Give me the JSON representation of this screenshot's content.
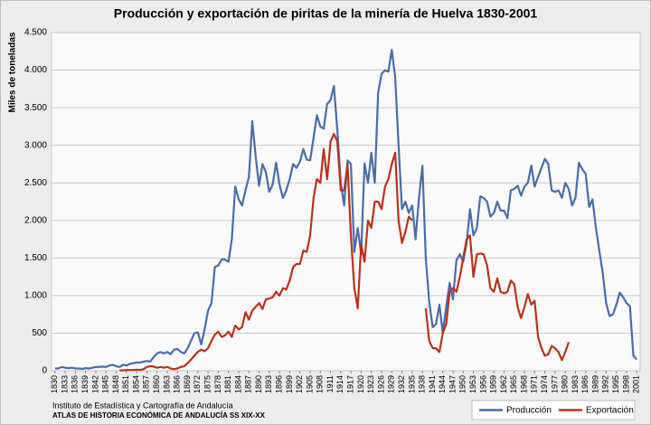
{
  "chart_data": {
    "type": "line",
    "title": "Producción y exportación de piritas de la minería de Huelva 1830-2001",
    "y_label": "Miles de toneladas",
    "source": "Instituto de Estadística y Cartografía de Andalucía",
    "source_note": "ATLAS DE HISTORIA ECONÓMICA DE ANDALUCÍA SS XIX-XX",
    "x": [
      1830,
      1831,
      1832,
      1833,
      1834,
      1835,
      1836,
      1837,
      1838,
      1839,
      1840,
      1841,
      1842,
      1843,
      1844,
      1845,
      1846,
      1847,
      1848,
      1849,
      1850,
      1851,
      1852,
      1853,
      1854,
      1855,
      1856,
      1857,
      1858,
      1859,
      1860,
      1861,
      1862,
      1863,
      1864,
      1865,
      1866,
      1867,
      1868,
      1869,
      1870,
      1871,
      1872,
      1873,
      1874,
      1875,
      1876,
      1877,
      1878,
      1879,
      1880,
      1881,
      1882,
      1883,
      1884,
      1885,
      1886,
      1887,
      1888,
      1889,
      1890,
      1891,
      1892,
      1893,
      1894,
      1895,
      1896,
      1897,
      1898,
      1899,
      1900,
      1901,
      1902,
      1903,
      1904,
      1905,
      1906,
      1907,
      1908,
      1909,
      1910,
      1911,
      1912,
      1913,
      1914,
      1915,
      1916,
      1917,
      1918,
      1919,
      1920,
      1921,
      1922,
      1923,
      1924,
      1925,
      1926,
      1927,
      1928,
      1929,
      1930,
      1931,
      1932,
      1933,
      1934,
      1935,
      1936,
      1937,
      1938,
      1939,
      1940,
      1941,
      1942,
      1943,
      1944,
      1945,
      1946,
      1947,
      1948,
      1949,
      1950,
      1951,
      1952,
      1953,
      1954,
      1955,
      1956,
      1957,
      1958,
      1959,
      1960,
      1961,
      1962,
      1963,
      1964,
      1965,
      1966,
      1967,
      1968,
      1969,
      1970,
      1971,
      1972,
      1973,
      1974,
      1975,
      1976,
      1977,
      1978,
      1979,
      1980,
      1981,
      1982,
      1983,
      1984,
      1985,
      1986,
      1987,
      1988,
      1989,
      1990,
      1991,
      1992,
      1993,
      1994,
      1995,
      1996,
      1997,
      1998,
      1999,
      2000,
      2001
    ],
    "series": [
      {
        "name": "Producción",
        "color": "#4a6ca8",
        "values": [
          30,
          30,
          50,
          40,
          35,
          40,
          30,
          30,
          25,
          35,
          30,
          40,
          50,
          50,
          55,
          50,
          70,
          80,
          60,
          50,
          80,
          70,
          90,
          100,
          110,
          110,
          120,
          130,
          120,
          180,
          230,
          250,
          230,
          250,
          220,
          280,
          290,
          250,
          230,
          300,
          400,
          500,
          510,
          350,
          550,
          800,
          900,
          1380,
          1400,
          1480,
          1480,
          1450,
          1750,
          2450,
          2280,
          2200,
          2400,
          2580,
          3320,
          2850,
          2460,
          2750,
          2640,
          2380,
          2480,
          2770,
          2480,
          2300,
          2400,
          2550,
          2750,
          2700,
          2780,
          2950,
          2810,
          2800,
          3100,
          3400,
          3250,
          3220,
          3550,
          3600,
          3790,
          3200,
          2500,
          2200,
          2800,
          2750,
          1580,
          1900,
          1550,
          2760,
          2500,
          2900,
          2500,
          3700,
          3950,
          4000,
          3980,
          4270,
          3900,
          3000,
          2150,
          2250,
          2100,
          2200,
          1750,
          2300,
          2730,
          1500,
          920,
          580,
          620,
          880,
          500,
          850,
          1170,
          950,
          1470,
          1550,
          1450,
          1700,
          2150,
          1800,
          1900,
          2320,
          2300,
          2250,
          2050,
          2100,
          2250,
          2130,
          2130,
          2030,
          2400,
          2420,
          2460,
          2330,
          2450,
          2500,
          2730,
          2450,
          2580,
          2700,
          2820,
          2750,
          2400,
          2380,
          2400,
          2300,
          2500,
          2420,
          2200,
          2300,
          2770,
          2680,
          2620,
          2180,
          2280,
          1900,
          1600,
          1300,
          900,
          730,
          750,
          880,
          1040,
          980,
          900,
          860,
          200,
          150
        ]
      },
      {
        "name": "Exportación",
        "color": "#b8321c",
        "values": [
          null,
          null,
          null,
          null,
          null,
          null,
          null,
          null,
          null,
          null,
          null,
          null,
          null,
          null,
          null,
          null,
          null,
          null,
          null,
          5,
          5,
          10,
          10,
          10,
          15,
          10,
          20,
          50,
          60,
          55,
          40,
          50,
          40,
          50,
          30,
          20,
          30,
          50,
          60,
          100,
          150,
          200,
          250,
          280,
          260,
          300,
          400,
          480,
          520,
          450,
          470,
          520,
          450,
          600,
          550,
          580,
          780,
          680,
          800,
          850,
          900,
          820,
          950,
          960,
          980,
          1050,
          1000,
          1100,
          1080,
          1200,
          1380,
          1420,
          1420,
          1600,
          1580,
          1800,
          2300,
          2550,
          2500,
          2950,
          2550,
          3050,
          3150,
          3050,
          2400,
          2400,
          2750,
          1800,
          1100,
          830,
          1680,
          1450,
          2000,
          1900,
          2250,
          2250,
          2150,
          2450,
          2550,
          2750,
          2900,
          2000,
          1700,
          1850,
          2050,
          2000,
          null,
          null,
          null,
          830,
          400,
          300,
          300,
          250,
          500,
          620,
          1050,
          1100,
          1050,
          1250,
          1500,
          1750,
          1800,
          1250,
          1550,
          1560,
          1550,
          1400,
          1100,
          1050,
          1230,
          1050,
          1030,
          1050,
          1200,
          1150,
          850,
          700,
          850,
          1020,
          880,
          930,
          450,
          300,
          200,
          220,
          330,
          300,
          250,
          140,
          250,
          380,
          null,
          null,
          null,
          null,
          null,
          null,
          null,
          null,
          null,
          null,
          null,
          null,
          null,
          null,
          null,
          null,
          null,
          null,
          null,
          null
        ]
      }
    ],
    "xlim": [
      1829,
      2002
    ],
    "xticks": [
      1830,
      1833,
      1836,
      1839,
      1842,
      1845,
      1848,
      1851,
      1854,
      1857,
      1860,
      1863,
      1866,
      1869,
      1872,
      1875,
      1878,
      1881,
      1884,
      1887,
      1890,
      1893,
      1896,
      1899,
      1902,
      1905,
      1908,
      1911,
      1914,
      1917,
      1920,
      1923,
      1926,
      1929,
      1932,
      1935,
      1938,
      1941,
      1944,
      1947,
      1950,
      1953,
      1956,
      1959,
      1962,
      1965,
      1968,
      1971,
      1974,
      1977,
      1980,
      1983,
      1986,
      1989,
      1992,
      1995,
      1998,
      2001
    ],
    "ylim": [
      0,
      4500
    ],
    "yticks": [
      0,
      500,
      {
        "value": 1000,
        "label": "1.000"
      },
      {
        "value": 1500,
        "label": "1.500"
      },
      {
        "value": 2000,
        "label": "2.000"
      },
      {
        "value": 2500,
        "label": "2.500"
      },
      {
        "value": 3000,
        "label": "3.000"
      },
      {
        "value": 3500,
        "label": "3.500"
      },
      {
        "value": 4000,
        "label": "4.000"
      },
      {
        "value": 4500,
        "label": "4.500"
      }
    ],
    "grid": true,
    "legend": "bottom-right"
  }
}
